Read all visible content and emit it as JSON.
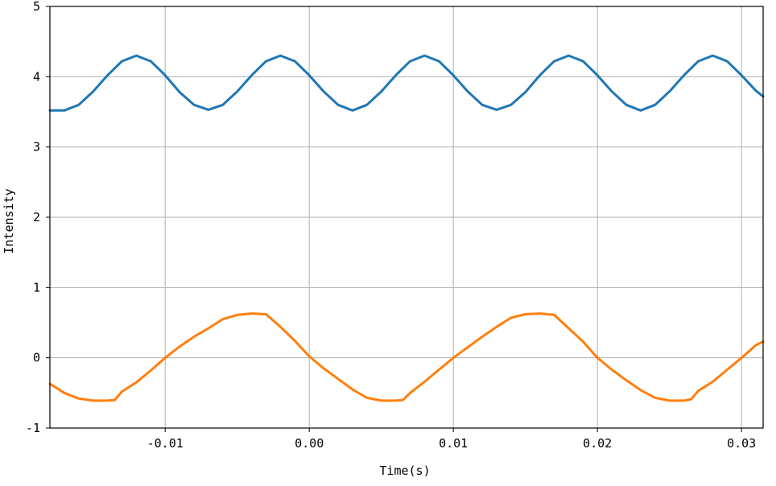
{
  "chart_data": {
    "type": "line",
    "title": "",
    "xlabel": "Time(s)",
    "ylabel": "Intensity",
    "xlim": [
      -0.018,
      0.0315
    ],
    "ylim": [
      -1,
      5
    ],
    "xticks": [
      -0.01,
      0.0,
      0.01,
      0.02,
      0.03
    ],
    "xtick_labels": [
      "-0.01",
      "0.00",
      "0.01",
      "0.02",
      "0.03"
    ],
    "yticks": [
      -1,
      0,
      1,
      2,
      3,
      4,
      5
    ],
    "ytick_labels": [
      "-1",
      "0",
      "1",
      "2",
      "3",
      "4",
      "5"
    ],
    "grid": true,
    "series": [
      {
        "color": "#1f77b4",
        "x": [
          -0.018,
          -0.017,
          -0.016,
          -0.015,
          -0.014,
          -0.013,
          -0.012,
          -0.011,
          -0.01,
          -0.009,
          -0.008,
          -0.007,
          -0.006,
          -0.005,
          -0.004,
          -0.003,
          -0.002,
          -0.001,
          0.0,
          0.001,
          0.002,
          0.003,
          0.004,
          0.005,
          0.006,
          0.007,
          0.008,
          0.009,
          0.01,
          0.011,
          0.012,
          0.013,
          0.014,
          0.015,
          0.016,
          0.017,
          0.018,
          0.019,
          0.02,
          0.021,
          0.022,
          0.023,
          0.024,
          0.025,
          0.026,
          0.027,
          0.028,
          0.029,
          0.03,
          0.031,
          0.0315
        ],
        "y": [
          3.52,
          3.52,
          3.6,
          3.79,
          4.02,
          4.22,
          4.3,
          4.22,
          4.02,
          3.78,
          3.6,
          3.53,
          3.6,
          3.79,
          4.02,
          4.22,
          4.3,
          4.22,
          4.02,
          3.79,
          3.6,
          3.52,
          3.6,
          3.79,
          4.02,
          4.22,
          4.3,
          4.22,
          4.02,
          3.79,
          3.6,
          3.53,
          3.6,
          3.78,
          4.02,
          4.22,
          4.3,
          4.22,
          4.02,
          3.79,
          3.6,
          3.52,
          3.6,
          3.79,
          4.02,
          4.22,
          4.3,
          4.22,
          4.02,
          3.8,
          3.72
        ]
      },
      {
        "color": "#ff7f0e",
        "x": [
          -0.018,
          -0.017,
          -0.016,
          -0.015,
          -0.014,
          -0.0135,
          -0.013,
          -0.012,
          -0.011,
          -0.01,
          -0.009,
          -0.008,
          -0.007,
          -0.006,
          -0.005,
          -0.004,
          -0.003,
          -0.002,
          -0.001,
          0.0,
          0.001,
          0.002,
          0.003,
          0.004,
          0.005,
          0.006,
          0.0065,
          0.007,
          0.008,
          0.009,
          0.01,
          0.011,
          0.012,
          0.013,
          0.014,
          0.015,
          0.016,
          0.017,
          0.018,
          0.019,
          0.02,
          0.021,
          0.022,
          0.023,
          0.024,
          0.025,
          0.026,
          0.0265,
          0.027,
          0.028,
          0.029,
          0.03,
          0.031,
          0.0315
        ],
        "y": [
          -0.37,
          -0.5,
          -0.58,
          -0.61,
          -0.61,
          -0.6,
          -0.48,
          -0.35,
          -0.18,
          0.0,
          0.16,
          0.3,
          0.42,
          0.55,
          0.61,
          0.63,
          0.62,
          0.44,
          0.24,
          0.02,
          -0.15,
          -0.3,
          -0.45,
          -0.57,
          -0.61,
          -0.61,
          -0.6,
          -0.5,
          -0.34,
          -0.17,
          0.0,
          0.15,
          0.3,
          0.44,
          0.57,
          0.62,
          0.63,
          0.61,
          0.42,
          0.23,
          0.0,
          -0.17,
          -0.32,
          -0.46,
          -0.57,
          -0.61,
          -0.61,
          -0.59,
          -0.47,
          -0.34,
          -0.17,
          0.0,
          0.18,
          0.23
        ]
      }
    ]
  }
}
